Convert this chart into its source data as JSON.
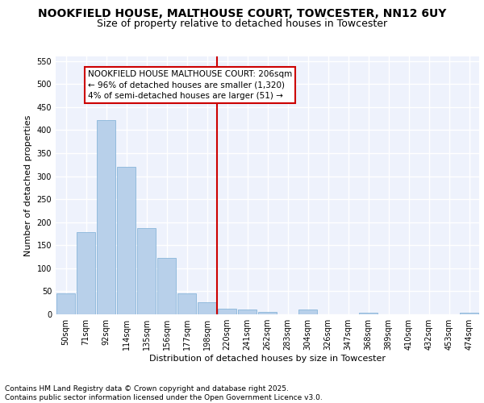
{
  "title": "NOOKFIELD HOUSE, MALTHOUSE COURT, TOWCESTER, NN12 6UY",
  "subtitle": "Size of property relative to detached houses in Towcester",
  "xlabel": "Distribution of detached houses by size in Towcester",
  "ylabel": "Number of detached properties",
  "categories": [
    "50sqm",
    "71sqm",
    "92sqm",
    "114sqm",
    "135sqm",
    "156sqm",
    "177sqm",
    "198sqm",
    "220sqm",
    "241sqm",
    "262sqm",
    "283sqm",
    "304sqm",
    "326sqm",
    "347sqm",
    "368sqm",
    "389sqm",
    "410sqm",
    "432sqm",
    "453sqm",
    "474sqm"
  ],
  "values": [
    46,
    178,
    422,
    320,
    187,
    122,
    46,
    27,
    12,
    10,
    5,
    0,
    10,
    0,
    0,
    3,
    0,
    0,
    0,
    0,
    4
  ],
  "bar_color": "#b8d0ea",
  "bar_edge_color": "#7aadd4",
  "vline_x": 7.5,
  "vline_color": "#cc0000",
  "annotation_text": "NOOKFIELD HOUSE MALTHOUSE COURT: 206sqm\n← 96% of detached houses are smaller (1,320)\n4% of semi-detached houses are larger (51) →",
  "annotation_box_color": "#ffffff",
  "annotation_box_edge": "#cc0000",
  "ylim": [
    0,
    560
  ],
  "yticks": [
    0,
    50,
    100,
    150,
    200,
    250,
    300,
    350,
    400,
    450,
    500,
    550
  ],
  "background_color": "#eef2fc",
  "grid_color": "#ffffff",
  "footer": "Contains HM Land Registry data © Crown copyright and database right 2025.\nContains public sector information licensed under the Open Government Licence v3.0.",
  "title_fontsize": 10,
  "subtitle_fontsize": 9,
  "axis_label_fontsize": 8,
  "tick_fontsize": 7,
  "annotation_fontsize": 7.5,
  "footer_fontsize": 6.5
}
